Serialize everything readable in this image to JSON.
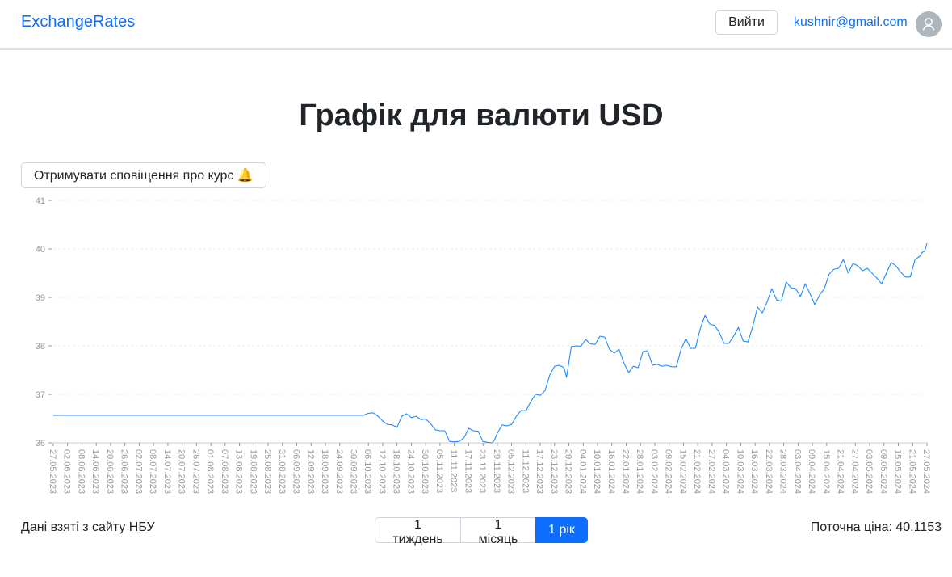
{
  "navbar": {
    "brand": "ExchangeRates",
    "logout_label": "Вийти",
    "user_email": "kushnir@gmail.com"
  },
  "page": {
    "title": "Графік для валюти USD",
    "notify_label": "Отримувати сповіщення про курс 🔔"
  },
  "footer": {
    "source_note": "Дані взяті з сайту НБУ",
    "range_options": [
      "1 тиждень",
      "1 місяць",
      "1 рік"
    ],
    "active_range": "1 рік",
    "current_price_label": "Поточна ціна: 40.1153"
  },
  "colors": {
    "accent": "#0d6efd",
    "line": "#1f8bff",
    "tick_text": "#999999"
  },
  "chart_data": {
    "type": "line",
    "title": "",
    "xlabel": "",
    "ylabel": "",
    "ylim": [
      36,
      41
    ],
    "yticks": [
      36,
      37,
      38,
      39,
      40,
      41
    ],
    "grid": "horizontal-dashed",
    "legend": "none",
    "x_start": "27.05.2023",
    "x_end": "27.05.2024",
    "x_tick_labels": [
      "27.05.2023",
      "02.06.2023",
      "08.06.2023",
      "14.06.2023",
      "20.06.2023",
      "26.06.2023",
      "02.07.2023",
      "08.07.2023",
      "14.07.2023",
      "20.07.2023",
      "26.07.2023",
      "01.08.2023",
      "07.08.2023",
      "13.08.2023",
      "19.08.2023",
      "25.08.2023",
      "31.08.2023",
      "06.09.2023",
      "12.09.2023",
      "18.09.2023",
      "24.09.2023",
      "30.09.2023",
      "06.10.2023",
      "12.10.2023",
      "18.10.2023",
      "24.10.2023",
      "30.10.2023",
      "05.11.2023",
      "11.11.2023",
      "17.11.2023",
      "23.11.2023",
      "29.11.2023",
      "05.12.2023",
      "11.12.2023",
      "17.12.2023",
      "23.12.2023",
      "29.12.2023",
      "04.01.2024",
      "10.01.2024",
      "16.01.2024",
      "22.01.2024",
      "28.01.2024",
      "03.02.2024",
      "09.02.2024",
      "15.02.2024",
      "21.02.2024",
      "27.02.2024",
      "04.03.2024",
      "10.03.2024",
      "16.03.2024",
      "22.03.2024",
      "28.03.2024",
      "03.04.2024",
      "09.04.2024",
      "15.04.2024",
      "21.04.2024",
      "27.04.2024",
      "03.05.2024",
      "09.05.2024",
      "15.05.2024",
      "21.05.2024",
      "27.05.2024"
    ],
    "series": [
      {
        "points": [
          [
            "27.05.2023",
            36.5686
          ],
          [
            "30.09.2023",
            36.5686
          ],
          [
            "04.10.2023",
            36.5686
          ],
          [
            "06.10.2023",
            36.61
          ],
          [
            "08.10.2023",
            36.62
          ],
          [
            "10.10.2023",
            36.55
          ],
          [
            "12.10.2023",
            36.45
          ],
          [
            "14.10.2023",
            36.38
          ],
          [
            "16.10.2023",
            36.37
          ],
          [
            "18.10.2023",
            36.32
          ],
          [
            "20.10.2023",
            36.55
          ],
          [
            "22.10.2023",
            36.6
          ],
          [
            "24.10.2023",
            36.52
          ],
          [
            "26.10.2023",
            36.55
          ],
          [
            "28.10.2023",
            36.48
          ],
          [
            "30.10.2023",
            36.49
          ],
          [
            "01.11.2023",
            36.4
          ],
          [
            "03.11.2023",
            36.27
          ],
          [
            "05.11.2023",
            36.25
          ],
          [
            "07.11.2023",
            36.25
          ],
          [
            "09.11.2023",
            36.03
          ],
          [
            "11.11.2023",
            36.02
          ],
          [
            "13.11.2023",
            36.03
          ],
          [
            "15.11.2023",
            36.1
          ],
          [
            "17.11.2023",
            36.3
          ],
          [
            "19.11.2023",
            36.25
          ],
          [
            "21.11.2023",
            36.24
          ],
          [
            "23.11.2023",
            36.03
          ],
          [
            "25.11.2023",
            36.01
          ],
          [
            "27.11.2023",
            36.0
          ],
          [
            "28.11.2023",
            36.08
          ],
          [
            "29.11.2023",
            36.2
          ],
          [
            "01.12.2023",
            36.37
          ],
          [
            "03.12.2023",
            36.35
          ],
          [
            "05.12.2023",
            36.38
          ],
          [
            "07.12.2023",
            36.55
          ],
          [
            "09.12.2023",
            36.67
          ],
          [
            "11.12.2023",
            36.66
          ],
          [
            "13.12.2023",
            36.85
          ],
          [
            "15.12.2023",
            37.0
          ],
          [
            "17.12.2023",
            36.98
          ],
          [
            "19.12.2023",
            37.08
          ],
          [
            "21.12.2023",
            37.4
          ],
          [
            "23.12.2023",
            37.58
          ],
          [
            "25.12.2023",
            37.6
          ],
          [
            "27.12.2023",
            37.55
          ],
          [
            "28.12.2023",
            37.35
          ],
          [
            "30.12.2023",
            37.98
          ],
          [
            "01.01.2024",
            38.0
          ],
          [
            "03.01.2024",
            37.99
          ],
          [
            "05.01.2024",
            38.13
          ],
          [
            "07.01.2024",
            38.04
          ],
          [
            "09.01.2024",
            38.03
          ],
          [
            "11.01.2024",
            38.2
          ],
          [
            "13.01.2024",
            38.18
          ],
          [
            "15.01.2024",
            37.93
          ],
          [
            "17.01.2024",
            37.85
          ],
          [
            "19.01.2024",
            37.93
          ],
          [
            "21.01.2024",
            37.65
          ],
          [
            "23.01.2024",
            37.45
          ],
          [
            "25.01.2024",
            37.58
          ],
          [
            "27.01.2024",
            37.55
          ],
          [
            "29.01.2024",
            37.88
          ],
          [
            "31.01.2024",
            37.9
          ],
          [
            "02.02.2024",
            37.6
          ],
          [
            "04.02.2024",
            37.62
          ],
          [
            "06.02.2024",
            37.58
          ],
          [
            "08.02.2024",
            37.6
          ],
          [
            "10.02.2024",
            37.57
          ],
          [
            "12.02.2024",
            37.57
          ],
          [
            "14.02.2024",
            37.93
          ],
          [
            "16.02.2024",
            38.15
          ],
          [
            "18.02.2024",
            37.95
          ],
          [
            "20.02.2024",
            37.95
          ],
          [
            "22.02.2024",
            38.35
          ],
          [
            "24.02.2024",
            38.63
          ],
          [
            "26.02.2024",
            38.45
          ],
          [
            "28.02.2024",
            38.42
          ],
          [
            "01.03.2024",
            38.28
          ],
          [
            "03.03.2024",
            38.05
          ],
          [
            "05.03.2024",
            38.05
          ],
          [
            "07.03.2024",
            38.2
          ],
          [
            "09.03.2024",
            38.38
          ],
          [
            "11.03.2024",
            38.1
          ],
          [
            "13.03.2024",
            38.08
          ],
          [
            "15.03.2024",
            38.4
          ],
          [
            "17.03.2024",
            38.8
          ],
          [
            "19.03.2024",
            38.68
          ],
          [
            "21.03.2024",
            38.9
          ],
          [
            "23.03.2024",
            39.18
          ],
          [
            "25.03.2024",
            38.95
          ],
          [
            "27.03.2024",
            38.92
          ],
          [
            "29.03.2024",
            39.32
          ],
          [
            "31.03.2024",
            39.2
          ],
          [
            "02.04.2024",
            39.18
          ],
          [
            "04.04.2024",
            39.02
          ],
          [
            "06.04.2024",
            39.28
          ],
          [
            "08.04.2024",
            39.08
          ],
          [
            "10.04.2024",
            38.85
          ],
          [
            "12.04.2024",
            39.05
          ],
          [
            "14.04.2024",
            39.18
          ],
          [
            "16.04.2024",
            39.48
          ],
          [
            "18.04.2024",
            39.58
          ],
          [
            "20.04.2024",
            39.6
          ],
          [
            "22.04.2024",
            39.78
          ],
          [
            "24.04.2024",
            39.5
          ],
          [
            "26.04.2024",
            39.7
          ],
          [
            "28.04.2024",
            39.65
          ],
          [
            "30.04.2024",
            39.55
          ],
          [
            "02.05.2024",
            39.6
          ],
          [
            "04.05.2024",
            39.5
          ],
          [
            "06.05.2024",
            39.4
          ],
          [
            "08.05.2024",
            39.28
          ],
          [
            "10.05.2024",
            39.5
          ],
          [
            "12.05.2024",
            39.72
          ],
          [
            "14.05.2024",
            39.65
          ],
          [
            "16.05.2024",
            39.52
          ],
          [
            "18.05.2024",
            39.42
          ],
          [
            "20.05.2024",
            39.42
          ],
          [
            "22.05.2024",
            39.78
          ],
          [
            "24.05.2024",
            39.85
          ],
          [
            "25.05.2024",
            39.93
          ],
          [
            "26.05.2024",
            39.95
          ],
          [
            "27.05.2024",
            40.1153
          ]
        ]
      }
    ]
  }
}
